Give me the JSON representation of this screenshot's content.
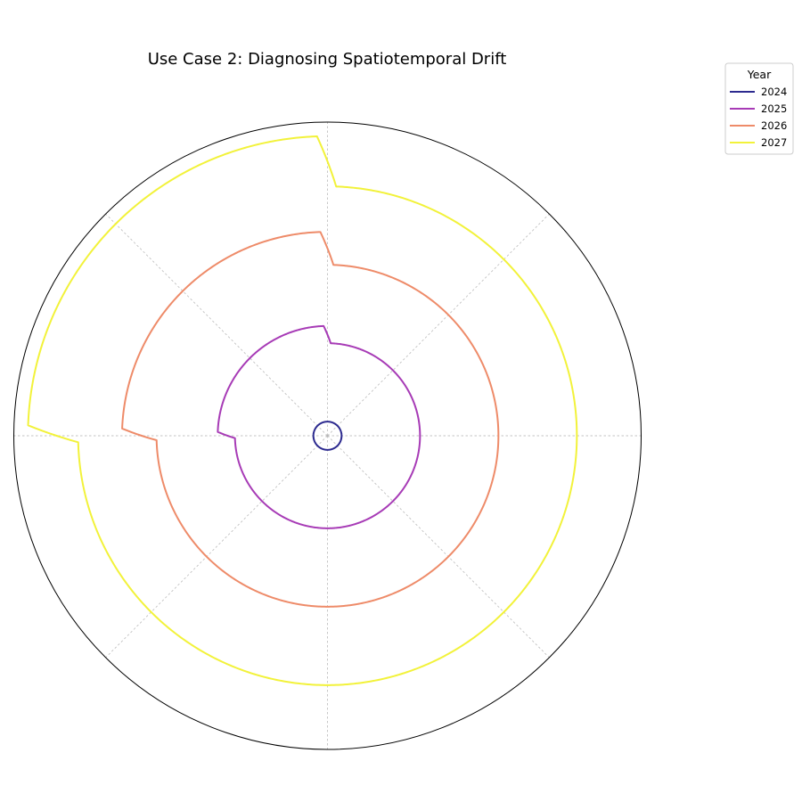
{
  "chart_data": {
    "type": "line",
    "projection": "polar",
    "title": "Use Case 2: Diagnosing Spatiotemporal Drift",
    "radial_ticks_shown": false,
    "angular_ticks_shown": false,
    "grid": true,
    "angular_gridlines_deg": [
      0,
      45,
      90,
      135,
      180,
      225,
      270,
      315
    ],
    "rlim": [
      0,
      1.0
    ],
    "legend": {
      "title": "Year",
      "placement": "top-right",
      "entries": [
        "2024",
        "2025",
        "2026",
        "2027"
      ]
    },
    "series": [
      {
        "name": "2024",
        "color": "#2c2a8f",
        "points": [
          {
            "theta_deg": 0,
            "r": 0.045
          },
          {
            "theta_deg": 90,
            "r": 0.045
          },
          {
            "theta_deg": 180,
            "r": 0.045
          },
          {
            "theta_deg": 270,
            "r": 0.045
          },
          {
            "theta_deg": 360,
            "r": 0.045
          }
        ]
      },
      {
        "name": "2025",
        "color": "#a73bb6",
        "points": [
          {
            "theta_deg": 0,
            "r": 0.295
          },
          {
            "theta_deg": 88,
            "r": 0.295
          },
          {
            "theta_deg": 92,
            "r": 0.35
          },
          {
            "theta_deg": 178,
            "r": 0.35
          },
          {
            "theta_deg": 181.5,
            "r": 0.295
          },
          {
            "theta_deg": 360,
            "r": 0.295
          }
        ]
      },
      {
        "name": "2026",
        "color": "#ee8b69",
        "points": [
          {
            "theta_deg": 0,
            "r": 0.545
          },
          {
            "theta_deg": 88,
            "r": 0.545
          },
          {
            "theta_deg": 92,
            "r": 0.65
          },
          {
            "theta_deg": 178,
            "r": 0.655
          },
          {
            "theta_deg": 181.5,
            "r": 0.545
          },
          {
            "theta_deg": 360,
            "r": 0.545
          }
        ]
      },
      {
        "name": "2027",
        "color": "#f2f23a",
        "points": [
          {
            "theta_deg": 0,
            "r": 0.795
          },
          {
            "theta_deg": 88,
            "r": 0.795
          },
          {
            "theta_deg": 92,
            "r": 0.955
          },
          {
            "theta_deg": 178,
            "r": 0.955
          },
          {
            "theta_deg": 181.5,
            "r": 0.795
          },
          {
            "theta_deg": 360,
            "r": 0.795
          }
        ]
      }
    ]
  }
}
